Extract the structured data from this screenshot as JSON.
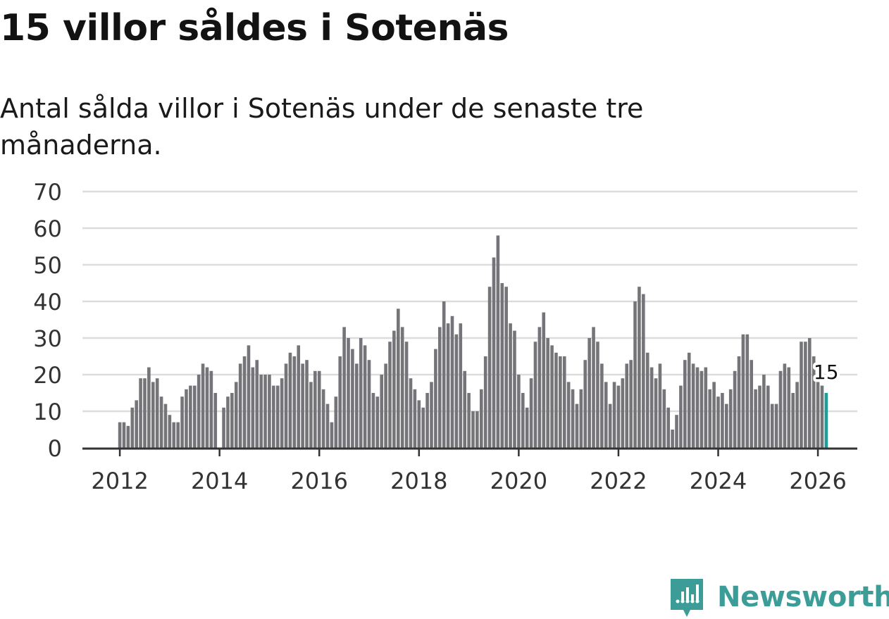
{
  "title": "15 villor såldes i Sotenäs",
  "subtitle": "Antal sålda villor i Sotenäs under de senaste tre månaderna.",
  "brand": {
    "name": "Newsworthy",
    "color": "#3c9d98",
    "icon": "newsworthy-logo-icon"
  },
  "colors": {
    "bar": "#757478",
    "highlight": "#1e9c98",
    "grid": "#dcdcdc",
    "axis": "#333333"
  },
  "chart_data": {
    "type": "bar",
    "title": "15 villor såldes i Sotenäs",
    "xlabel": "",
    "ylabel": "",
    "ylim": [
      0,
      70
    ],
    "yticks": [
      0,
      10,
      20,
      30,
      40,
      50,
      60,
      70
    ],
    "xticks": [
      "2012",
      "2014",
      "2016",
      "2018",
      "2020",
      "2022",
      "2024",
      "2026"
    ],
    "xlim": [
      2011.25,
      2026.79
    ],
    "start_month": "2012-01",
    "grid": true,
    "annotation": {
      "label": "15",
      "value": 15
    },
    "values": [
      7,
      7,
      6,
      11,
      13,
      19,
      19,
      22,
      18,
      19,
      14,
      12,
      9,
      7,
      7,
      14,
      16,
      17,
      17,
      20,
      23,
      22,
      21,
      15,
      0,
      11,
      14,
      15,
      18,
      23,
      25,
      28,
      22,
      24,
      20,
      20,
      20,
      17,
      17,
      19,
      23,
      26,
      25,
      28,
      23,
      24,
      18,
      21,
      21,
      16,
      12,
      7,
      14,
      25,
      33,
      30,
      27,
      23,
      30,
      28,
      24,
      15,
      14,
      20,
      23,
      29,
      32,
      38,
      33,
      29,
      19,
      16,
      13,
      11,
      15,
      18,
      27,
      33,
      40,
      34,
      36,
      31,
      34,
      21,
      15,
      10,
      10,
      16,
      25,
      44,
      52,
      58,
      45,
      44,
      34,
      32,
      20,
      15,
      11,
      19,
      29,
      33,
      37,
      30,
      28,
      26,
      25,
      25,
      18,
      16,
      12,
      16,
      24,
      30,
      33,
      29,
      23,
      18,
      12,
      18,
      17,
      19,
      23,
      24,
      40,
      44,
      42,
      26,
      22,
      19,
      23,
      16,
      11,
      5,
      9,
      17,
      24,
      26,
      23,
      22,
      21,
      22,
      16,
      18,
      14,
      15,
      12,
      16,
      21,
      25,
      31,
      31,
      24,
      16,
      17,
      20,
      17,
      12,
      12,
      21,
      23,
      22,
      15,
      18,
      29,
      29,
      30,
      25,
      18,
      17,
      15
    ]
  }
}
